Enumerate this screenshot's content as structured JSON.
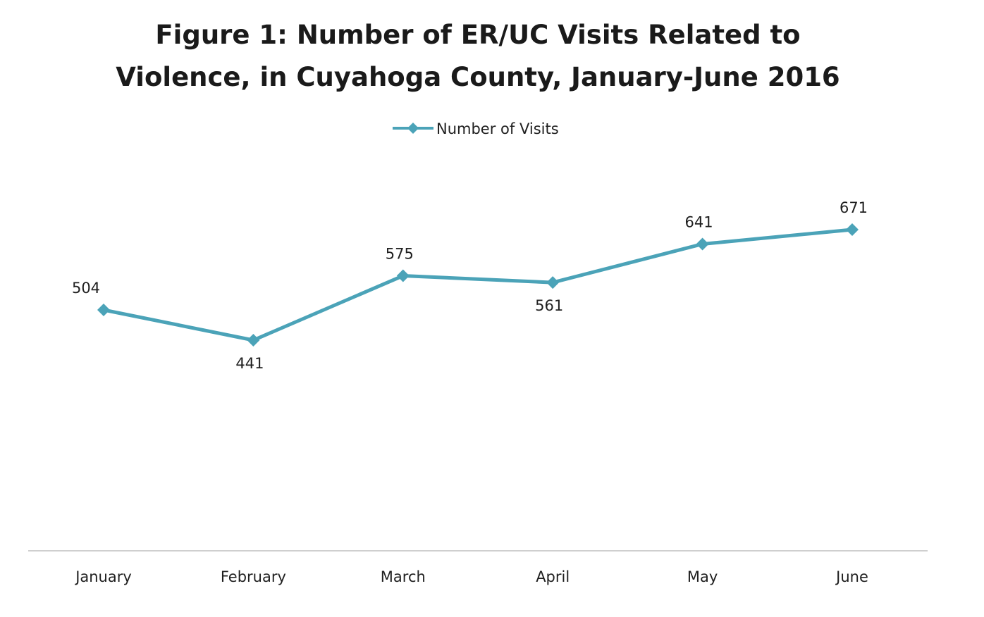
{
  "chart_data": {
    "type": "line",
    "title": "Figure 1: Number of ER/UC Visits Related to Violence, in Cuyahoga County, January-June 2016",
    "title_lines": [
      "Figure 1: Number of ER/UC Visits Related to",
      "Violence, in Cuyahoga County, January-June 2016"
    ],
    "categories": [
      "January",
      "February",
      "March",
      "April",
      "May",
      "June"
    ],
    "series": [
      {
        "name": "Number of Visits",
        "values": [
          504,
          441,
          575,
          561,
          641,
          671
        ],
        "color": "#4BA3B8",
        "marker": "diamond"
      }
    ],
    "data_labels": [
      "504",
      "441",
      "575",
      "561",
      "641",
      "671"
    ],
    "label_positions": [
      "above",
      "below",
      "above",
      "below",
      "above",
      "above"
    ],
    "legend_position": "top",
    "grid": false,
    "y_axis_visible": false,
    "x_axis_line_color": "#bfbfbf"
  }
}
